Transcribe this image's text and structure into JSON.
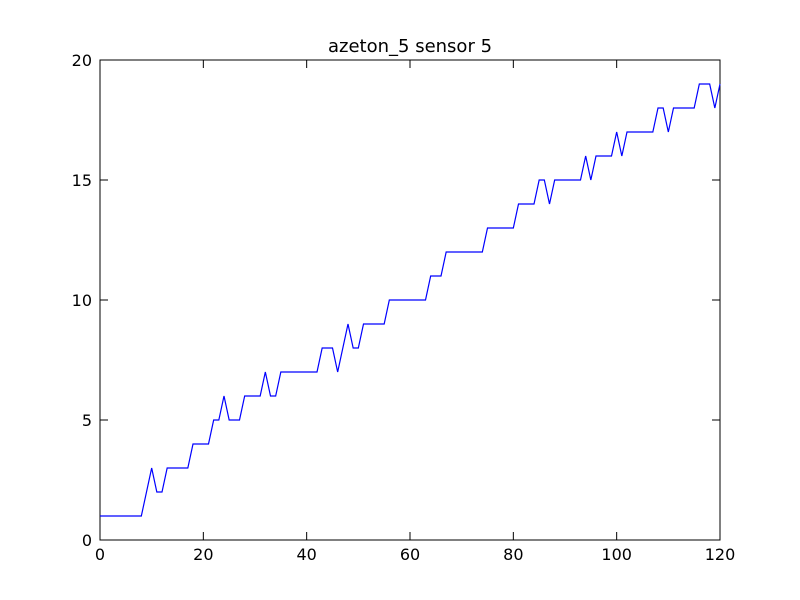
{
  "chart_data": {
    "type": "line",
    "title": "azeton_5 sensor 5",
    "xlabel": "",
    "ylabel": "",
    "xlim": [
      0,
      120
    ],
    "ylim": [
      0,
      20
    ],
    "grid": false,
    "x_ticks": [
      0,
      20,
      40,
      60,
      80,
      100,
      120
    ],
    "y_ticks": [
      0,
      5,
      10,
      15,
      20
    ],
    "x_tick_labels": [
      "0",
      "20",
      "40",
      "60",
      "80",
      "100",
      "120"
    ],
    "y_tick_labels": [
      "0",
      "5",
      "10",
      "15",
      "20"
    ],
    "colors": {
      "series": "#0000ff",
      "axes": "#000000",
      "background": "#ffffff"
    },
    "series": [
      {
        "values": [
          [
            0,
            1
          ],
          [
            1,
            1
          ],
          [
            2,
            1
          ],
          [
            3,
            1
          ],
          [
            4,
            1
          ],
          [
            5,
            1
          ],
          [
            6,
            1
          ],
          [
            7,
            1
          ],
          [
            8,
            1
          ],
          [
            9,
            2
          ],
          [
            10,
            3
          ],
          [
            11,
            2
          ],
          [
            12,
            2
          ],
          [
            13,
            3
          ],
          [
            14,
            3
          ],
          [
            15,
            3
          ],
          [
            16,
            3
          ],
          [
            17,
            3
          ],
          [
            18,
            4
          ],
          [
            19,
            4
          ],
          [
            20,
            4
          ],
          [
            21,
            4
          ],
          [
            22,
            5
          ],
          [
            23,
            5
          ],
          [
            24,
            6
          ],
          [
            25,
            5
          ],
          [
            26,
            5
          ],
          [
            27,
            5
          ],
          [
            28,
            6
          ],
          [
            29,
            6
          ],
          [
            30,
            6
          ],
          [
            31,
            6
          ],
          [
            32,
            7
          ],
          [
            33,
            6
          ],
          [
            34,
            6
          ],
          [
            35,
            7
          ],
          [
            36,
            7
          ],
          [
            37,
            7
          ],
          [
            38,
            7
          ],
          [
            39,
            7
          ],
          [
            40,
            7
          ],
          [
            41,
            7
          ],
          [
            42,
            7
          ],
          [
            43,
            8
          ],
          [
            44,
            8
          ],
          [
            45,
            8
          ],
          [
            46,
            7
          ],
          [
            47,
            8
          ],
          [
            48,
            9
          ],
          [
            49,
            8
          ],
          [
            50,
            8
          ],
          [
            51,
            9
          ],
          [
            52,
            9
          ],
          [
            53,
            9
          ],
          [
            54,
            9
          ],
          [
            55,
            9
          ],
          [
            56,
            10
          ],
          [
            57,
            10
          ],
          [
            58,
            10
          ],
          [
            59,
            10
          ],
          [
            60,
            10
          ],
          [
            61,
            10
          ],
          [
            62,
            10
          ],
          [
            63,
            10
          ],
          [
            64,
            11
          ],
          [
            65,
            11
          ],
          [
            66,
            11
          ],
          [
            67,
            12
          ],
          [
            68,
            12
          ],
          [
            69,
            12
          ],
          [
            70,
            12
          ],
          [
            71,
            12
          ],
          [
            72,
            12
          ],
          [
            73,
            12
          ],
          [
            74,
            12
          ],
          [
            75,
            13
          ],
          [
            76,
            13
          ],
          [
            77,
            13
          ],
          [
            78,
            13
          ],
          [
            79,
            13
          ],
          [
            80,
            13
          ],
          [
            81,
            14
          ],
          [
            82,
            14
          ],
          [
            83,
            14
          ],
          [
            84,
            14
          ],
          [
            85,
            15
          ],
          [
            86,
            15
          ],
          [
            87,
            14
          ],
          [
            88,
            15
          ],
          [
            89,
            15
          ],
          [
            90,
            15
          ],
          [
            91,
            15
          ],
          [
            92,
            15
          ],
          [
            93,
            15
          ],
          [
            94,
            16
          ],
          [
            95,
            15
          ],
          [
            96,
            16
          ],
          [
            97,
            16
          ],
          [
            98,
            16
          ],
          [
            99,
            16
          ],
          [
            100,
            17
          ],
          [
            101,
            16
          ],
          [
            102,
            17
          ],
          [
            103,
            17
          ],
          [
            104,
            17
          ],
          [
            105,
            17
          ],
          [
            106,
            17
          ],
          [
            107,
            17
          ],
          [
            108,
            18
          ],
          [
            109,
            18
          ],
          [
            110,
            17
          ],
          [
            111,
            18
          ],
          [
            112,
            18
          ],
          [
            113,
            18
          ],
          [
            114,
            18
          ],
          [
            115,
            18
          ],
          [
            116,
            19
          ],
          [
            117,
            19
          ],
          [
            118,
            19
          ],
          [
            119,
            18
          ],
          [
            120,
            19
          ]
        ]
      }
    ]
  }
}
